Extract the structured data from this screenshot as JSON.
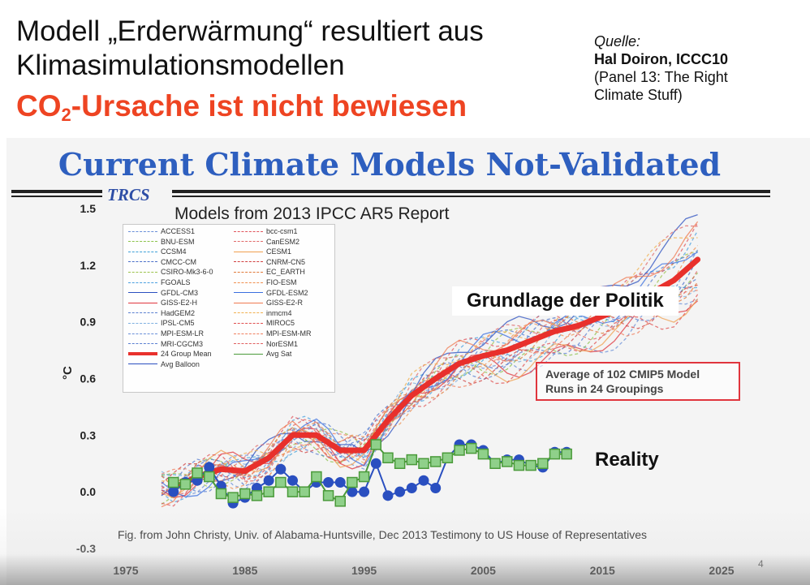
{
  "header": {
    "title_line1": "Modell „Erderwärmung“ resultiert aus",
    "title_line2": "Klimasimulationsmodellen",
    "claim_prefix": "CO",
    "claim_sub": "2",
    "claim_rest": "-Ursache ist nicht bewiesen"
  },
  "source": {
    "label": "Quelle:",
    "author": "Hal Doiron, ICCC10",
    "detail_line1": "(Panel 13: The Right",
    "detail_line2": "Climate Stuff)"
  },
  "slide": {
    "title": "Current Climate Models Not-Validated",
    "tag": "TRCS",
    "caption": "Fig. from John Christy, Univ. of Alabama-Huntsville, Dec 2013 Testimony to US House of Representatives",
    "page_number": "4"
  },
  "annotations": {
    "politik": "Grundlage der Politik",
    "box_text": "Average of 102 CMIP5 Model Runs in 24 Groupings",
    "reality": "Reality"
  },
  "legend": {
    "left": [
      {
        "name": "ACCESS1",
        "color": "#6a8fd8",
        "style": "dashed"
      },
      {
        "name": "BNU-ESM",
        "color": "#8cc24b",
        "style": "dashed"
      },
      {
        "name": "CCSM4",
        "color": "#3fa0d8",
        "style": "dashed"
      },
      {
        "name": "CMCC-CM",
        "color": "#4a6fc8",
        "style": "dashed"
      },
      {
        "name": "CSIRO-Mk3-6-0",
        "color": "#9bc24b",
        "style": "dashed"
      },
      {
        "name": "FGOALS",
        "color": "#4aa0e0",
        "style": "dashed"
      },
      {
        "name": "GFDL-CM3",
        "color": "#2a4fc0",
        "style": "solid"
      },
      {
        "name": "GISS-E2-H",
        "color": "#e0353d",
        "style": "solid"
      },
      {
        "name": "HadGEM2",
        "color": "#5a7fd0",
        "style": "dashed"
      },
      {
        "name": "IPSL-CM5",
        "color": "#7fb0e0",
        "style": "dashed"
      },
      {
        "name": "MPI-ESM-LR",
        "color": "#6a8fd8",
        "style": "dashed"
      },
      {
        "name": "MRI-CGCM3",
        "color": "#5a7fd0",
        "style": "dashed"
      },
      {
        "name": "24 Group Mean",
        "color": "#e8302c",
        "style": "thick"
      },
      {
        "name": "Avg Balloon",
        "color": "#2a4fc0",
        "style": "solid"
      }
    ],
    "right": [
      {
        "name": "bcc-csm1",
        "color": "#e0555d",
        "style": "dashed"
      },
      {
        "name": "CanESM2",
        "color": "#e06a6a",
        "style": "dashed"
      },
      {
        "name": "CESM1",
        "color": "#f0a050",
        "style": "solid"
      },
      {
        "name": "CNRM-CN5",
        "color": "#d04040",
        "style": "dashed"
      },
      {
        "name": "EC_EARTH",
        "color": "#e07a3a",
        "style": "dashed"
      },
      {
        "name": "FIO-ESM",
        "color": "#f09050",
        "style": "dashed"
      },
      {
        "name": "GFDL-ESM2",
        "color": "#3a6fe0",
        "style": "solid"
      },
      {
        "name": "GISS-E2-R",
        "color": "#f07a50",
        "style": "solid"
      },
      {
        "name": "inmcm4",
        "color": "#f0b050",
        "style": "dashed"
      },
      {
        "name": "MIROC5",
        "color": "#e05050",
        "style": "dashed"
      },
      {
        "name": "MPI-ESM-MR",
        "color": "#f08060",
        "style": "dashed"
      },
      {
        "name": "NorESM1",
        "color": "#e06060",
        "style": "dashed"
      },
      {
        "name": "Avg Sat",
        "color": "#4a9a3a",
        "style": "solid"
      }
    ]
  },
  "chart_data": {
    "type": "line",
    "title": "Models from 2013 IPCC AR5 Report",
    "xlabel": "",
    "ylabel": "°C",
    "xlim": [
      1975,
      2025
    ],
    "ylim": [
      -0.3,
      1.5
    ],
    "x_ticks": [
      "1975",
      "1985",
      "1995",
      "2005",
      "2015",
      "2025"
    ],
    "y_ticks": [
      "-0.3",
      "0.0",
      "0.3",
      "0.6",
      "0.9",
      "1.2",
      "1.5"
    ],
    "series": [
      {
        "name": "24 Group Mean",
        "color": "#e8302c",
        "x": [
          1979,
          1981,
          1983,
          1985,
          1987,
          1989,
          1991,
          1993,
          1995,
          1997,
          1999,
          2001,
          2003,
          2005,
          2007,
          2009,
          2011,
          2013,
          2015,
          2017,
          2019,
          2021,
          2023
        ],
        "y": [
          0.02,
          0.08,
          0.12,
          0.11,
          0.18,
          0.3,
          0.3,
          0.22,
          0.22,
          0.38,
          0.51,
          0.6,
          0.68,
          0.72,
          0.75,
          0.8,
          0.85,
          0.88,
          0.93,
          0.98,
          1.05,
          1.12,
          1.23
        ]
      },
      {
        "name": "Avg Balloon",
        "color": "#2a4fc0",
        "x": [
          1979,
          1980,
          1981,
          1982,
          1983,
          1984,
          1985,
          1986,
          1987,
          1988,
          1989,
          1990,
          1991,
          1992,
          1993,
          1994,
          1995,
          1996,
          1997,
          1998,
          1999,
          2000,
          2001,
          2002,
          2003,
          2004,
          2005,
          2006,
          2007,
          2008,
          2009,
          2010,
          2011,
          2012
        ],
        "y": [
          0.0,
          0.05,
          0.06,
          0.13,
          0.03,
          -0.06,
          -0.03,
          0.02,
          0.06,
          0.12,
          0.06,
          0.0,
          0.05,
          0.05,
          0.05,
          0.0,
          0.0,
          0.15,
          -0.02,
          0.0,
          0.02,
          0.06,
          0.02,
          0.18,
          0.25,
          0.25,
          0.22,
          0.15,
          0.17,
          0.17,
          0.14,
          0.13,
          0.21,
          0.21
        ]
      },
      {
        "name": "Avg Sat",
        "color": "#4a9a3a",
        "x": [
          1979,
          1980,
          1981,
          1982,
          1983,
          1984,
          1985,
          1986,
          1987,
          1988,
          1989,
          1990,
          1991,
          1992,
          1993,
          1994,
          1995,
          1996,
          1997,
          1998,
          1999,
          2000,
          2001,
          2002,
          2003,
          2004,
          2005,
          2006,
          2007,
          2008,
          2009,
          2010,
          2011,
          2012
        ],
        "y": [
          0.05,
          0.04,
          0.1,
          0.08,
          -0.01,
          -0.03,
          -0.01,
          -0.02,
          0.0,
          0.05,
          0.0,
          0.0,
          0.08,
          -0.02,
          -0.05,
          0.05,
          0.08,
          0.25,
          0.18,
          0.15,
          0.17,
          0.15,
          0.16,
          0.18,
          0.22,
          0.23,
          0.2,
          0.15,
          0.16,
          0.14,
          0.14,
          0.15,
          0.2,
          0.2
        ]
      }
    ],
    "model_runs_shown": true,
    "legend_position": "top-left",
    "grid": false
  }
}
